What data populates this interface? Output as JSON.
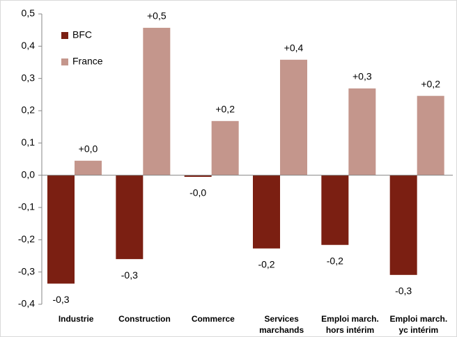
{
  "chart_data": {
    "type": "bar",
    "categories": [
      "Industrie",
      "Construction",
      "Commerce",
      "Services marchands",
      "Emploi march. hors intérim",
      "Emploi march. yc intérim"
    ],
    "series": [
      {
        "name": "BFC",
        "color": "#7b1f12",
        "values": [
          -0.336,
          -0.26,
          -0.005,
          -0.227,
          -0.216,
          -0.309
        ],
        "value_labels": [
          "-0,3",
          "-0,3",
          "-0,0",
          "-0,2",
          "-0,2",
          "-0,3"
        ]
      },
      {
        "name": "France",
        "color": "#c4968c",
        "values": [
          0.045,
          0.457,
          0.168,
          0.358,
          0.269,
          0.246
        ],
        "value_labels": [
          "+0,0",
          "+0,5",
          "+0,2",
          "+0,4",
          "+0,3",
          "+0,2"
        ]
      }
    ],
    "ylim": [
      -0.4,
      0.5
    ],
    "yticks": [
      {
        "value": -0.4,
        "label": "-0,4"
      },
      {
        "value": -0.3,
        "label": "-0,3"
      },
      {
        "value": -0.2,
        "label": "-0,2"
      },
      {
        "value": -0.1,
        "label": "-0,1"
      },
      {
        "value": 0,
        "label": "0,0"
      },
      {
        "value": 0.1,
        "label": "0,1"
      },
      {
        "value": 0.2,
        "label": "0,2"
      },
      {
        "value": 0.3,
        "label": "0,3"
      },
      {
        "value": 0.4,
        "label": "0,4"
      },
      {
        "value": 0.5,
        "label": "0,5"
      }
    ],
    "grid": false,
    "legend": "top-left"
  }
}
